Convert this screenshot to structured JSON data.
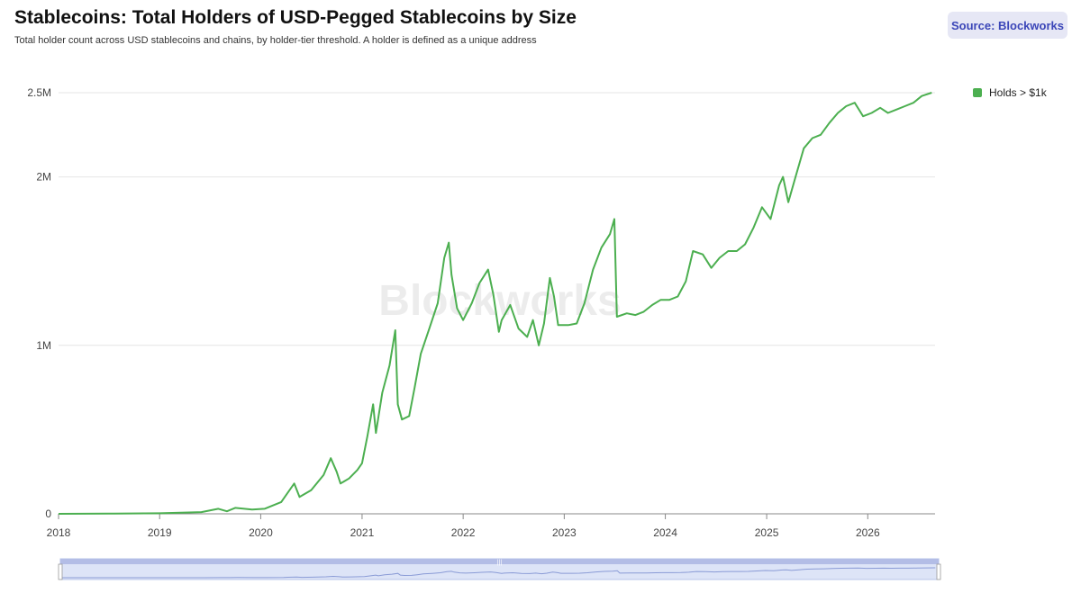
{
  "header": {
    "title": "Stablecoins: Total Holders of USD-Pegged Stablecoins by Size",
    "subtitle": "Total holder count across USD stablecoins and chains, by holder-tier threshold. A holder is defined as a unique address",
    "source_label": "Source: Blockworks"
  },
  "watermark": "Blockworks",
  "colors": {
    "series": "#4caf50",
    "grid": "#e6e6e6",
    "navigator_fill": "#dde4f7",
    "navigator_border": "#b9c4e8",
    "source_bg": "#e6e7f5",
    "source_text": "#3b46b8"
  },
  "chart_data": {
    "type": "line",
    "title": "Stablecoins: Total Holders of USD-Pegged Stablecoins by Size",
    "xlabel": "",
    "ylabel": "",
    "x_ticks": [
      "2018",
      "2019",
      "2020",
      "2021",
      "2022",
      "2023",
      "2024",
      "2025",
      "2026"
    ],
    "y_ticks": [
      {
        "value": 0,
        "label": "0"
      },
      {
        "value": 1000000,
        "label": "1M"
      },
      {
        "value": 2000000,
        "label": "2M"
      },
      {
        "value": 2500000,
        "label": "2.5M"
      }
    ],
    "ylim": [
      0,
      2500000
    ],
    "xlim": [
      "2018-01-01",
      "2026-09-01"
    ],
    "grid": true,
    "legend_position": "top-right",
    "series": [
      {
        "name": "Holds > $1k",
        "color": "#4caf50",
        "points": [
          [
            "2018-01-01",
            0
          ],
          [
            "2018-07-01",
            1000
          ],
          [
            "2019-01-01",
            3000
          ],
          [
            "2019-06-01",
            10000
          ],
          [
            "2019-08-01",
            30000
          ],
          [
            "2019-09-01",
            15000
          ],
          [
            "2019-10-01",
            35000
          ],
          [
            "2019-12-01",
            25000
          ],
          [
            "2020-01-15",
            30000
          ],
          [
            "2020-03-15",
            70000
          ],
          [
            "2020-04-01",
            110000
          ],
          [
            "2020-05-01",
            180000
          ],
          [
            "2020-05-20",
            100000
          ],
          [
            "2020-07-01",
            140000
          ],
          [
            "2020-08-15",
            230000
          ],
          [
            "2020-09-10",
            330000
          ],
          [
            "2020-10-01",
            250000
          ],
          [
            "2020-10-15",
            180000
          ],
          [
            "2020-11-15",
            210000
          ],
          [
            "2020-12-15",
            260000
          ],
          [
            "2021-01-01",
            300000
          ],
          [
            "2021-01-20",
            460000
          ],
          [
            "2021-02-10",
            650000
          ],
          [
            "2021-02-20",
            480000
          ],
          [
            "2021-03-15",
            720000
          ],
          [
            "2021-04-10",
            880000
          ],
          [
            "2021-05-01",
            1090000
          ],
          [
            "2021-05-10",
            650000
          ],
          [
            "2021-05-25",
            560000
          ],
          [
            "2021-06-20",
            580000
          ],
          [
            "2021-07-10",
            750000
          ],
          [
            "2021-08-01",
            950000
          ],
          [
            "2021-09-01",
            1100000
          ],
          [
            "2021-10-01",
            1250000
          ],
          [
            "2021-10-25",
            1520000
          ],
          [
            "2021-11-10",
            1610000
          ],
          [
            "2021-11-20",
            1420000
          ],
          [
            "2021-12-10",
            1220000
          ],
          [
            "2022-01-01",
            1150000
          ],
          [
            "2022-02-01",
            1250000
          ],
          [
            "2022-03-01",
            1370000
          ],
          [
            "2022-04-01",
            1450000
          ],
          [
            "2022-04-20",
            1300000
          ],
          [
            "2022-05-10",
            1080000
          ],
          [
            "2022-05-20",
            1150000
          ],
          [
            "2022-06-20",
            1240000
          ],
          [
            "2022-07-20",
            1100000
          ],
          [
            "2022-08-20",
            1050000
          ],
          [
            "2022-09-10",
            1150000
          ],
          [
            "2022-10-01",
            1000000
          ],
          [
            "2022-10-20",
            1130000
          ],
          [
            "2022-11-10",
            1400000
          ],
          [
            "2022-11-25",
            1290000
          ],
          [
            "2022-12-10",
            1120000
          ],
          [
            "2023-01-15",
            1120000
          ],
          [
            "2023-02-15",
            1130000
          ],
          [
            "2023-03-15",
            1250000
          ],
          [
            "2023-04-15",
            1450000
          ],
          [
            "2023-05-15",
            1580000
          ],
          [
            "2023-06-15",
            1660000
          ],
          [
            "2023-07-01",
            1750000
          ],
          [
            "2023-07-10",
            1170000
          ],
          [
            "2023-08-15",
            1190000
          ],
          [
            "2023-09-15",
            1180000
          ],
          [
            "2023-10-15",
            1200000
          ],
          [
            "2023-11-15",
            1240000
          ],
          [
            "2023-12-15",
            1270000
          ],
          [
            "2024-01-15",
            1270000
          ],
          [
            "2024-02-15",
            1290000
          ],
          [
            "2024-03-15",
            1380000
          ],
          [
            "2024-04-10",
            1560000
          ],
          [
            "2024-05-15",
            1540000
          ],
          [
            "2024-06-15",
            1460000
          ],
          [
            "2024-07-15",
            1520000
          ],
          [
            "2024-08-15",
            1560000
          ],
          [
            "2024-09-15",
            1560000
          ],
          [
            "2024-10-15",
            1600000
          ],
          [
            "2024-11-15",
            1700000
          ],
          [
            "2024-12-15",
            1820000
          ],
          [
            "2025-01-15",
            1750000
          ],
          [
            "2025-02-15",
            1950000
          ],
          [
            "2025-03-01",
            2000000
          ],
          [
            "2025-03-20",
            1850000
          ],
          [
            "2025-04-15",
            2000000
          ],
          [
            "2025-05-15",
            2170000
          ],
          [
            "2025-06-15",
            2230000
          ],
          [
            "2025-07-15",
            2250000
          ],
          [
            "2025-08-15",
            2320000
          ],
          [
            "2025-09-15",
            2380000
          ],
          [
            "2025-10-15",
            2420000
          ],
          [
            "2025-11-15",
            2440000
          ],
          [
            "2025-12-15",
            2360000
          ],
          [
            "2026-01-15",
            2380000
          ],
          [
            "2026-02-15",
            2410000
          ],
          [
            "2026-03-15",
            2380000
          ],
          [
            "2026-04-15",
            2400000
          ],
          [
            "2026-05-15",
            2420000
          ],
          [
            "2026-06-15",
            2440000
          ],
          [
            "2026-07-15",
            2480000
          ],
          [
            "2026-08-20",
            2500000
          ]
        ]
      }
    ]
  }
}
